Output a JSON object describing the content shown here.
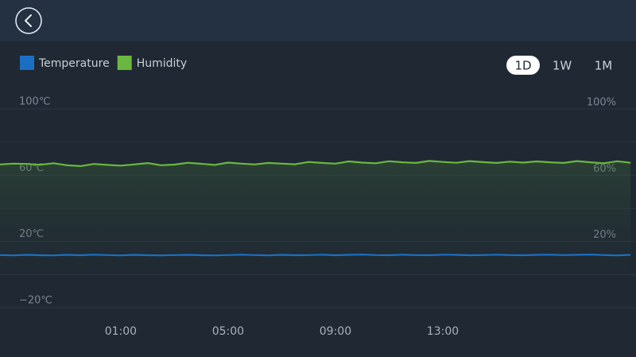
{
  "chart_data": {
    "type": "line",
    "x": [
      -3.5,
      -3,
      -2.5,
      -2,
      -1.5,
      -1,
      -0.5,
      0,
      0.5,
      1,
      1.5,
      2,
      2.5,
      3,
      3.5,
      4,
      4.5,
      5,
      5.5,
      6,
      6.5,
      7,
      7.5,
      8,
      8.5,
      9,
      9.5,
      10,
      10.5,
      11,
      11.5,
      12,
      12.5,
      13,
      13.5,
      14,
      14.5,
      15,
      15.5,
      16,
      16.5,
      17,
      17.5,
      18,
      18.5,
      19,
      19.5,
      20
    ],
    "xlim": [
      -3.5,
      20.2
    ],
    "xticks": [
      {
        "value": 1,
        "label": "01:00"
      },
      {
        "value": 5,
        "label": "05:00"
      },
      {
        "value": 9,
        "label": "09:00"
      },
      {
        "value": 13,
        "label": "13:00"
      }
    ],
    "ylim": [
      -20,
      100
    ],
    "yticks": [
      {
        "value": 100,
        "label": "100℃"
      },
      {
        "value": 60,
        "label": "60℃"
      },
      {
        "value": 20,
        "label": "20℃"
      },
      {
        "value": -20,
        "label": "−20℃"
      }
    ],
    "y2lim": [
      -20,
      100
    ],
    "y2ticks": [
      {
        "value": 100,
        "label": "100%"
      },
      {
        "value": 60,
        "label": "60%"
      },
      {
        "value": 20,
        "label": "20%"
      }
    ],
    "grid": true,
    "series": [
      {
        "name": "Temperature",
        "color": "#1a6fc4",
        "values": [
          11.8,
          11.6,
          11.9,
          11.7,
          11.6,
          11.9,
          11.7,
          12,
          11.8,
          11.6,
          11.9,
          11.7,
          11.6,
          11.8,
          11.9,
          11.7,
          11.6,
          11.8,
          12,
          11.8,
          11.6,
          11.9,
          11.7,
          11.8,
          12,
          11.7,
          11.9,
          12.1,
          11.8,
          11.7,
          12,
          11.8,
          11.7,
          12,
          11.9,
          11.7,
          11.8,
          12,
          11.8,
          11.7,
          11.9,
          12,
          11.8,
          11.9,
          12.1,
          11.8,
          11.6,
          11.9
        ]
      },
      {
        "name": "Humidity",
        "color": "#6ab83f",
        "axis": "y2",
        "values": [
          66.5,
          67,
          66.8,
          66.3,
          67.2,
          66,
          65.5,
          66.8,
          66.2,
          65.8,
          66.5,
          67.3,
          66,
          66.4,
          67.5,
          66.9,
          66.2,
          67.6,
          67,
          66.5,
          67.4,
          67,
          66.6,
          68,
          67.4,
          67,
          68.3,
          67.6,
          67.2,
          68.4,
          67.8,
          67.4,
          68.6,
          68,
          67.5,
          68.5,
          67.9,
          67.4,
          68.2,
          67.6,
          68.3,
          67.8,
          67.4,
          68.5,
          67.8,
          67.2,
          68.4,
          67.5
        ]
      }
    ]
  },
  "range_buttons": [
    "1D",
    "1W",
    "1M"
  ],
  "selected_range_index": 0
}
